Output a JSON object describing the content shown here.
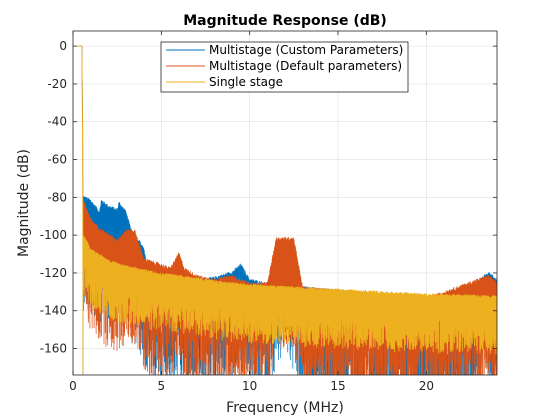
{
  "chart_data": {
    "type": "line",
    "title": "Magnitude Response (dB)",
    "xlabel": "Frequency (MHz)",
    "ylabel": "Magnitude (dB)",
    "xlim": [
      0,
      24
    ],
    "ylim": [
      -174,
      8
    ],
    "xticks": [
      0,
      5,
      10,
      15,
      20
    ],
    "yticks": [
      0,
      -20,
      -40,
      -60,
      -80,
      -100,
      -120,
      -140,
      -160
    ],
    "grid": true,
    "legend_position": "top-center",
    "passband_edge_mhz": 0.55,
    "series": [
      {
        "name": "Multistage (Custom Parameters)",
        "color": "#0072BD",
        "envelope": [
          [
            0.6,
            -80
          ],
          [
            1.0,
            -82
          ],
          [
            1.5,
            -88
          ],
          [
            1.6,
            -82
          ],
          [
            2.0,
            -85
          ],
          [
            2.5,
            -87
          ],
          [
            2.6,
            -83
          ],
          [
            3.0,
            -88
          ],
          [
            3.3,
            -98
          ],
          [
            3.5,
            -100
          ],
          [
            4.0,
            -107
          ],
          [
            4.2,
            -118
          ],
          [
            5.0,
            -120
          ],
          [
            6.0,
            -122
          ],
          [
            7.0,
            -124
          ],
          [
            8.0,
            -123
          ],
          [
            9.0,
            -120
          ],
          [
            9.5,
            -116
          ],
          [
            10.0,
            -124
          ],
          [
            11.0,
            -126
          ],
          [
            12.0,
            -103
          ],
          [
            13.0,
            -128
          ],
          [
            15.0,
            -130
          ],
          [
            18.0,
            -132
          ],
          [
            20.0,
            -133
          ],
          [
            22.0,
            -134
          ],
          [
            23.5,
            -120
          ],
          [
            24.0,
            -124
          ]
        ]
      },
      {
        "name": "Multistage (Default parameters)",
        "color": "#D95319",
        "envelope": [
          [
            0.6,
            -82
          ],
          [
            1.0,
            -92
          ],
          [
            1.5,
            -97
          ],
          [
            2.0,
            -100
          ],
          [
            2.5,
            -103
          ],
          [
            3.0,
            -98
          ],
          [
            3.5,
            -98
          ],
          [
            4.0,
            -113
          ],
          [
            5.0,
            -116
          ],
          [
            5.5,
            -118
          ],
          [
            6.0,
            -110
          ],
          [
            6.3,
            -118
          ],
          [
            7.0,
            -122
          ],
          [
            8.0,
            -124
          ],
          [
            9.0,
            -122
          ],
          [
            10.0,
            -126
          ],
          [
            11.0,
            -126
          ],
          [
            11.5,
            -102
          ],
          [
            12.5,
            -102
          ],
          [
            13.0,
            -128
          ],
          [
            15.0,
            -130
          ],
          [
            20.0,
            -134
          ],
          [
            23.5,
            -122
          ],
          [
            24.0,
            -126
          ]
        ]
      },
      {
        "name": "Single stage",
        "color": "#EDB120",
        "envelope": [
          [
            0.55,
            -100
          ],
          [
            1.0,
            -108
          ],
          [
            2.0,
            -114
          ],
          [
            3.0,
            -117
          ],
          [
            4.0,
            -119
          ],
          [
            5.0,
            -121
          ],
          [
            6.0,
            -122
          ],
          [
            8.0,
            -125
          ],
          [
            10.0,
            -127
          ],
          [
            12.0,
            -128
          ],
          [
            14.0,
            -129
          ],
          [
            16.0,
            -130
          ],
          [
            18.0,
            -131
          ],
          [
            20.0,
            -132
          ],
          [
            24.0,
            -133
          ]
        ]
      }
    ]
  }
}
